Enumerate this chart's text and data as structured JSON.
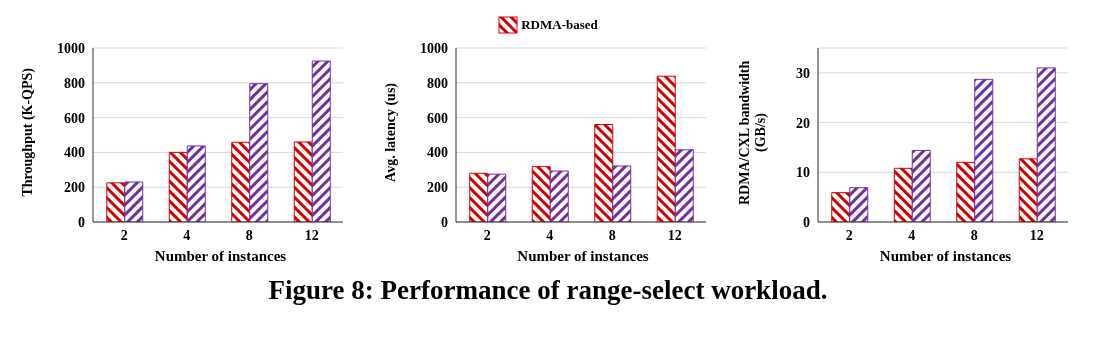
{
  "chart_data": [
    {
      "type": "bar",
      "xlabel": "Number of instances",
      "ylabel": "Throughput (K-QPS)",
      "categories": [
        "2",
        "4",
        "8",
        "12"
      ],
      "series": [
        {
          "color": "#d00000",
          "values": [
            225,
            400,
            458,
            460
          ]
        },
        {
          "color": "#7030a0",
          "values": [
            230,
            437,
            795,
            925
          ]
        }
      ],
      "ylim": [
        0,
        1000
      ],
      "yticks": [
        0,
        200,
        400,
        600,
        800,
        1000
      ],
      "grid": "y",
      "legend": false,
      "annotations": [
        "Figure 8: Performance of range-select workload."
      ]
    },
    {
      "type": "bar",
      "xlabel": "Number of instances",
      "ylabel": "Avg. latency (us)",
      "categories": [
        "2",
        "4",
        "8",
        "12"
      ],
      "series": [
        {
          "name": "RDMA-based",
          "color": "#d00000",
          "values": [
            280,
            318,
            560,
            838
          ]
        },
        {
          "color": "#7030a0",
          "values": [
            275,
            293,
            322,
            415
          ]
        }
      ],
      "ylim": [
        0,
        1000
      ],
      "yticks": [
        0,
        200,
        400,
        600,
        800,
        1000
      ],
      "grid": "y",
      "legend": "top"
    },
    {
      "type": "bar",
      "xlabel": "Number of instances",
      "ylabel": "RDMA/CXL bandwidth (GB/s)",
      "categories": [
        "2",
        "4",
        "8",
        "12"
      ],
      "series": [
        {
          "color": "#d00000",
          "values": [
            5.9,
            10.8,
            12,
            12.7
          ]
        },
        {
          "color": "#7030a0",
          "values": [
            6.9,
            14.4,
            28.7,
            31
          ]
        }
      ],
      "ylim": [
        0,
        35
      ],
      "yticks": [
        0,
        10,
        20,
        30
      ],
      "grid": "y",
      "legend": false
    }
  ]
}
